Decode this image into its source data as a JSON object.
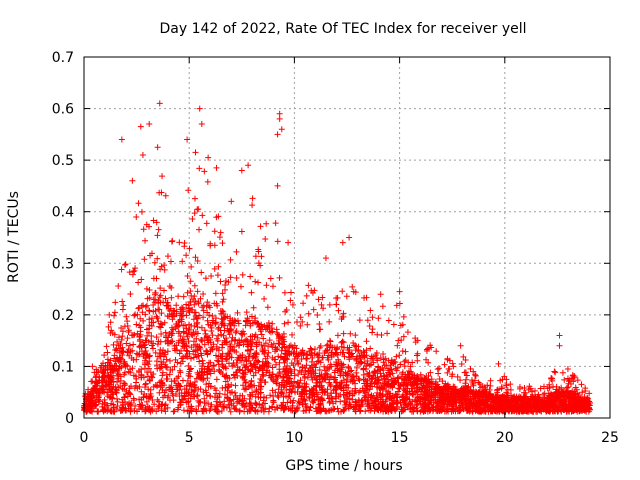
{
  "chart_data": {
    "type": "scatter",
    "title": "Day 142 of 2022, Rate Of TEC Index for receiver yell",
    "xlabel": "GPS time / hours",
    "ylabel": "ROTI / TECUs",
    "xlim": [
      0,
      25
    ],
    "ylim": [
      0,
      0.7
    ],
    "xticks": [
      0,
      5,
      10,
      15,
      20,
      25
    ],
    "yticks": [
      0,
      0.1,
      0.2,
      0.3,
      0.4,
      0.5,
      0.6,
      0.7
    ],
    "xtick_labels": [
      "0",
      "5",
      "10",
      "15",
      "20",
      "25"
    ],
    "ytick_labels": [
      "0",
      "0.1",
      "0.2",
      "0.3",
      "0.4",
      "0.5",
      "0.6",
      "0.7"
    ],
    "grid": true,
    "marker": "+",
    "color": "#ff0000",
    "envelope": {
      "x": [
        0,
        0.5,
        1,
        1.5,
        2,
        2.5,
        3,
        3.5,
        4,
        4.5,
        5,
        5.5,
        6,
        6.5,
        7,
        7.5,
        8,
        8.5,
        9,
        9.5,
        10,
        10.5,
        11,
        11.5,
        12,
        12.5,
        13,
        13.5,
        14,
        14.5,
        15,
        15.5,
        16,
        16.5,
        17,
        17.5,
        18,
        18.5,
        19,
        19.5,
        20,
        20.5,
        21,
        21.5,
        22,
        22.5,
        23,
        23.5,
        24
      ],
      "max": [
        0.03,
        0.08,
        0.14,
        0.22,
        0.32,
        0.4,
        0.46,
        0.5,
        0.42,
        0.38,
        0.46,
        0.5,
        0.44,
        0.38,
        0.34,
        0.4,
        0.44,
        0.34,
        0.46,
        0.3,
        0.26,
        0.24,
        0.26,
        0.24,
        0.28,
        0.3,
        0.26,
        0.22,
        0.22,
        0.2,
        0.22,
        0.16,
        0.14,
        0.13,
        0.11,
        0.1,
        0.12,
        0.08,
        0.07,
        0.06,
        0.07,
        0.05,
        0.05,
        0.05,
        0.05,
        0.09,
        0.09,
        0.06,
        0.04
      ],
      "dense": [
        0.02,
        0.05,
        0.09,
        0.14,
        0.18,
        0.2,
        0.22,
        0.24,
        0.22,
        0.2,
        0.22,
        0.24,
        0.22,
        0.2,
        0.18,
        0.18,
        0.19,
        0.17,
        0.18,
        0.15,
        0.13,
        0.12,
        0.13,
        0.12,
        0.14,
        0.14,
        0.13,
        0.11,
        0.11,
        0.1,
        0.1,
        0.08,
        0.07,
        0.06,
        0.05,
        0.05,
        0.05,
        0.04,
        0.04,
        0.03,
        0.03,
        0.03,
        0.03,
        0.03,
        0.03,
        0.04,
        0.04,
        0.03,
        0.02
      ]
    },
    "outliers": [
      {
        "x": 3.6,
        "y": 0.61
      },
      {
        "x": 5.5,
        "y": 0.6
      },
      {
        "x": 9.3,
        "y": 0.59
      },
      {
        "x": 9.3,
        "y": 0.58
      },
      {
        "x": 5.6,
        "y": 0.57
      },
      {
        "x": 2.7,
        "y": 0.565
      },
      {
        "x": 3.1,
        "y": 0.57
      },
      {
        "x": 1.8,
        "y": 0.54
      },
      {
        "x": 4.9,
        "y": 0.54
      },
      {
        "x": 9.2,
        "y": 0.55
      },
      {
        "x": 9.4,
        "y": 0.56
      },
      {
        "x": 3.5,
        "y": 0.525
      },
      {
        "x": 2.8,
        "y": 0.51
      },
      {
        "x": 5.3,
        "y": 0.515
      },
      {
        "x": 5.9,
        "y": 0.505
      },
      {
        "x": 7.8,
        "y": 0.49
      },
      {
        "x": 6.3,
        "y": 0.485
      },
      {
        "x": 9.2,
        "y": 0.45
      },
      {
        "x": 7.5,
        "y": 0.48
      },
      {
        "x": 2.3,
        "y": 0.46
      },
      {
        "x": 12.6,
        "y": 0.35
      },
      {
        "x": 12.3,
        "y": 0.34
      },
      {
        "x": 9.7,
        "y": 0.34
      },
      {
        "x": 11.5,
        "y": 0.31
      },
      {
        "x": 14.1,
        "y": 0.24
      },
      {
        "x": 15.0,
        "y": 0.245
      },
      {
        "x": 17.9,
        "y": 0.14
      },
      {
        "x": 19.7,
        "y": 0.105
      },
      {
        "x": 22.6,
        "y": 0.16
      },
      {
        "x": 22.6,
        "y": 0.14
      },
      {
        "x": 23.0,
        "y": 0.095
      },
      {
        "x": 18.5,
        "y": 0.09
      },
      {
        "x": 16.3,
        "y": 0.13
      },
      {
        "x": 0.4,
        "y": 0.1
      },
      {
        "x": 1.2,
        "y": 0.2
      },
      {
        "x": 7.0,
        "y": 0.42
      }
    ]
  }
}
